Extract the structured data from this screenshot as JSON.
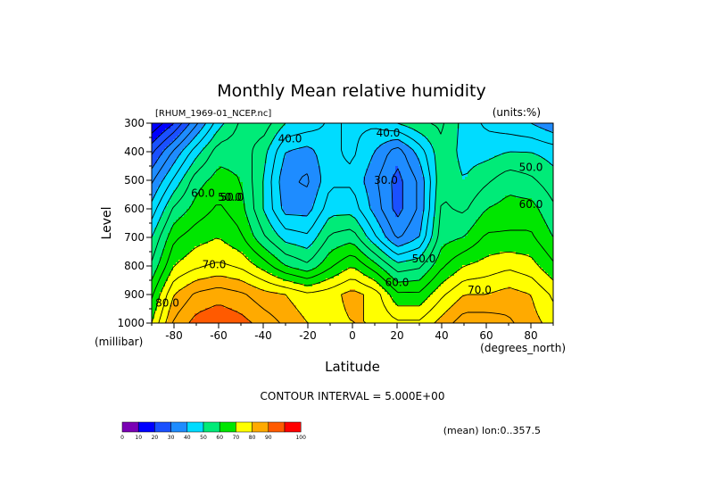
{
  "chart_data": {
    "type": "heatmap",
    "title": "Monthly Mean relative humidity",
    "dataset_label": "[RHUM_1969-01_NCEP.nc]",
    "units_label": "(units:%)",
    "xlabel": "Latitude",
    "x_units": "(degrees_north)",
    "ylabel": "Level",
    "y_units": "(millibar)",
    "xlim": [
      -90,
      90
    ],
    "ylim": [
      1000,
      300
    ],
    "x_ticks": [
      -80,
      -60,
      -40,
      -20,
      0,
      20,
      40,
      60,
      80
    ],
    "x_tick_labels": [
      "-80",
      "-60",
      "-40",
      "-20",
      "0",
      "20",
      "40",
      "60",
      "80"
    ],
    "y_ticks": [
      300,
      400,
      500,
      600,
      700,
      800,
      900,
      1000
    ],
    "y_tick_labels": [
      "300",
      "400",
      "500",
      "600",
      "700",
      "800",
      "900",
      "1000"
    ],
    "contour_interval_text": "CONTOUR INTERVAL = 5.000E+00",
    "mean_note": "(mean) lon:0..357.5",
    "color_levels": [
      0,
      10,
      20,
      30,
      40,
      50,
      60,
      70,
      80,
      90,
      100
    ],
    "color_level_labels": [
      "0",
      "10",
      "20",
      "30",
      "40",
      "50",
      "60",
      "70",
      "80",
      "90",
      "100"
    ],
    "colors": [
      "#7a00b4",
      "#0000ff",
      "#1a50ff",
      "#1e8cff",
      "#00dcff",
      "#00eb78",
      "#00e600",
      "#ffff00",
      "#ffaa00",
      "#ff5a00",
      "#ff0000"
    ],
    "grid_lats": [
      -90,
      -80,
      -70,
      -60,
      -50,
      -40,
      -30,
      -20,
      -10,
      0,
      10,
      20,
      30,
      40,
      50,
      60,
      70,
      80,
      90
    ],
    "grid_levels": [
      1000,
      900,
      800,
      700,
      600,
      500,
      400,
      300
    ],
    "values": [
      [
        70,
        86,
        92,
        94,
        92,
        88,
        84,
        80,
        78,
        80,
        80,
        76,
        76,
        82,
        88,
        88,
        86,
        82,
        78
      ],
      [
        64,
        80,
        86,
        88,
        86,
        82,
        80,
        76,
        78,
        82,
        78,
        66,
        66,
        74,
        80,
        80,
        82,
        80,
        74
      ],
      [
        56,
        70,
        74,
        76,
        74,
        68,
        60,
        56,
        64,
        70,
        62,
        52,
        54,
        64,
        70,
        72,
        74,
        72,
        66
      ],
      [
        50,
        64,
        68,
        70,
        66,
        56,
        48,
        46,
        56,
        58,
        46,
        34,
        40,
        58,
        60,
        66,
        66,
        66,
        60
      ],
      [
        42,
        56,
        62,
        66,
        62,
        50,
        38,
        38,
        48,
        48,
        38,
        28,
        36,
        56,
        54,
        60,
        62,
        62,
        56
      ],
      [
        34,
        46,
        58,
        62,
        60,
        50,
        36,
        34,
        44,
        44,
        36,
        28,
        36,
        54,
        50,
        54,
        58,
        56,
        52
      ],
      [
        24,
        36,
        48,
        58,
        58,
        52,
        40,
        38,
        44,
        46,
        40,
        32,
        42,
        54,
        48,
        48,
        50,
        50,
        48
      ],
      [
        10,
        20,
        34,
        48,
        56,
        58,
        50,
        48,
        44,
        46,
        46,
        50,
        54,
        56,
        48,
        44,
        42,
        40,
        36
      ]
    ],
    "contour_labels": [
      {
        "text": "40.0",
        "lat": -28,
        "level": 355
      },
      {
        "text": "40.0",
        "lat": 16,
        "level": 335
      },
      {
        "text": "30.0",
        "lat": 15,
        "level": 500
      },
      {
        "text": "50.0",
        "lat": -55,
        "level": 560
      },
      {
        "text": "50.0",
        "lat": -54,
        "level": 560
      },
      {
        "text": "50.0",
        "lat": 32,
        "level": 775
      },
      {
        "text": "50.0",
        "lat": 80,
        "level": 455
      },
      {
        "text": "60.0",
        "lat": -67,
        "level": 545
      },
      {
        "text": "60.0",
        "lat": 20,
        "level": 858
      },
      {
        "text": "60.0",
        "lat": 80,
        "level": 585
      },
      {
        "text": "70.0",
        "lat": -62,
        "level": 795
      },
      {
        "text": "70.0",
        "lat": 57,
        "level": 885
      },
      {
        "text": "80.0",
        "lat": -83,
        "level": 930
      }
    ]
  }
}
